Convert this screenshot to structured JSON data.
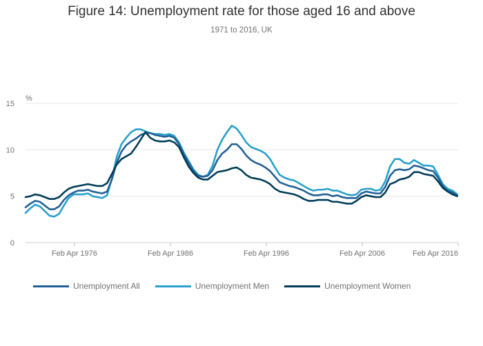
{
  "chart_data": {
    "type": "line",
    "title": "Figure 14: Unemployment rate for those aged 16 and above",
    "subtitle": "1971 to 2016, UK",
    "ylabel": "%",
    "xlabel": "",
    "ylim": [
      0,
      15
    ],
    "xlim": [
      1971.0,
      2016.1
    ],
    "yticks": [
      0,
      5,
      10,
      15
    ],
    "xticks": [
      {
        "value": 1976.1,
        "label": "Feb Apr 1976"
      },
      {
        "value": 1986.1,
        "label": "Feb Apr 1986"
      },
      {
        "value": 1996.1,
        "label": "Feb Apr 1996"
      },
      {
        "value": 2006.1,
        "label": "Feb Apr 2006"
      },
      {
        "value": 2016.1,
        "label": "Feb Apr 2016"
      }
    ],
    "grid": true,
    "legend_position": "bottom",
    "series": [
      {
        "name": "Unemployment All",
        "color": "#206095",
        "x": [
          1971.0,
          1971.5,
          1972.0,
          1972.5,
          1973.0,
          1973.5,
          1974.0,
          1974.5,
          1975.0,
          1975.5,
          1976.0,
          1976.5,
          1977.0,
          1977.5,
          1978.0,
          1978.5,
          1979.0,
          1979.5,
          1980.0,
          1980.5,
          1981.0,
          1981.5,
          1982.0,
          1982.5,
          1983.0,
          1983.5,
          1984.0,
          1984.5,
          1985.0,
          1985.5,
          1986.0,
          1986.5,
          1987.0,
          1987.5,
          1988.0,
          1988.5,
          1989.0,
          1989.5,
          1990.0,
          1990.5,
          1991.0,
          1991.5,
          1992.0,
          1992.5,
          1993.0,
          1993.5,
          1994.0,
          1994.5,
          1995.0,
          1995.5,
          1996.0,
          1996.5,
          1997.0,
          1997.5,
          1998.0,
          1998.5,
          1999.0,
          1999.5,
          2000.0,
          2000.5,
          2001.0,
          2001.5,
          2002.0,
          2002.5,
          2003.0,
          2003.5,
          2004.0,
          2004.5,
          2005.0,
          2005.5,
          2006.0,
          2006.5,
          2007.0,
          2007.5,
          2008.0,
          2008.5,
          2009.0,
          2009.5,
          2010.0,
          2010.5,
          2011.0,
          2011.5,
          2012.0,
          2012.5,
          2013.0,
          2013.5,
          2014.0,
          2014.5,
          2015.0,
          2015.5,
          2016.0
        ],
        "values": [
          3.8,
          4.2,
          4.5,
          4.4,
          4.0,
          3.6,
          3.6,
          3.9,
          4.6,
          5.1,
          5.4,
          5.6,
          5.6,
          5.7,
          5.5,
          5.4,
          5.3,
          5.5,
          6.8,
          8.6,
          9.8,
          10.5,
          10.9,
          11.2,
          11.6,
          11.8,
          11.8,
          11.6,
          11.5,
          11.4,
          11.5,
          11.3,
          10.6,
          9.5,
          8.6,
          7.7,
          7.2,
          7.1,
          7.2,
          7.8,
          8.9,
          9.6,
          10.0,
          10.6,
          10.6,
          10.1,
          9.4,
          8.9,
          8.6,
          8.4,
          8.1,
          7.7,
          7.1,
          6.5,
          6.3,
          6.1,
          6.0,
          5.8,
          5.6,
          5.3,
          5.1,
          5.1,
          5.2,
          5.2,
          5.0,
          5.1,
          4.9,
          4.8,
          4.8,
          4.8,
          5.3,
          5.5,
          5.4,
          5.3,
          5.3,
          6.0,
          7.2,
          7.8,
          7.9,
          7.8,
          7.9,
          8.3,
          8.2,
          8.0,
          7.8,
          7.7,
          7.0,
          6.1,
          5.6,
          5.4,
          5.1
        ]
      },
      {
        "name": "Unemployment Men",
        "color": "#27a0cc",
        "x": [
          1971.0,
          1971.5,
          1972.0,
          1972.5,
          1973.0,
          1973.5,
          1974.0,
          1974.5,
          1975.0,
          1975.5,
          1976.0,
          1976.5,
          1977.0,
          1977.5,
          1978.0,
          1978.5,
          1979.0,
          1979.5,
          1980.0,
          1980.5,
          1981.0,
          1981.5,
          1982.0,
          1982.5,
          1983.0,
          1983.5,
          1984.0,
          1984.5,
          1985.0,
          1985.5,
          1986.0,
          1986.5,
          1987.0,
          1987.5,
          1988.0,
          1988.5,
          1989.0,
          1989.5,
          1990.0,
          1990.5,
          1991.0,
          1991.5,
          1992.0,
          1992.5,
          1993.0,
          1993.5,
          1994.0,
          1994.5,
          1995.0,
          1995.5,
          1996.0,
          1996.5,
          1997.0,
          1997.5,
          1998.0,
          1998.5,
          1999.0,
          1999.5,
          2000.0,
          2000.5,
          2001.0,
          2001.5,
          2002.0,
          2002.5,
          2003.0,
          2003.5,
          2004.0,
          2004.5,
          2005.0,
          2005.5,
          2006.0,
          2006.5,
          2007.0,
          2007.5,
          2008.0,
          2008.5,
          2009.0,
          2009.5,
          2010.0,
          2010.5,
          2011.0,
          2011.5,
          2012.0,
          2012.5,
          2013.0,
          2013.5,
          2014.0,
          2014.5,
          2015.0,
          2015.5,
          2016.0
        ],
        "values": [
          3.2,
          3.7,
          4.1,
          3.9,
          3.4,
          2.9,
          2.8,
          3.1,
          4.0,
          4.8,
          5.2,
          5.2,
          5.2,
          5.3,
          5.0,
          4.9,
          4.8,
          5.1,
          6.9,
          9.2,
          10.6,
          11.3,
          11.9,
          12.2,
          12.2,
          12.0,
          11.8,
          11.7,
          11.7,
          11.6,
          11.7,
          11.5,
          10.8,
          9.7,
          8.8,
          7.9,
          7.3,
          7.1,
          7.3,
          8.3,
          10.0,
          11.1,
          11.9,
          12.6,
          12.3,
          11.6,
          10.8,
          10.3,
          10.1,
          9.9,
          9.6,
          9.0,
          8.1,
          7.3,
          7.0,
          6.8,
          6.7,
          6.4,
          6.1,
          5.8,
          5.6,
          5.7,
          5.7,
          5.8,
          5.6,
          5.6,
          5.4,
          5.2,
          5.1,
          5.2,
          5.7,
          5.8,
          5.8,
          5.6,
          5.7,
          6.6,
          8.2,
          9.0,
          9.0,
          8.6,
          8.5,
          8.9,
          8.6,
          8.3,
          8.3,
          8.2,
          7.3,
          6.3,
          5.8,
          5.6,
          5.2
        ]
      },
      {
        "name": "Unemployment Women",
        "color": "#003c57",
        "x": [
          1971.0,
          1971.5,
          1972.0,
          1972.5,
          1973.0,
          1973.5,
          1974.0,
          1974.5,
          1975.0,
          1975.5,
          1976.0,
          1976.5,
          1977.0,
          1977.5,
          1978.0,
          1978.5,
          1979.0,
          1979.5,
          1980.0,
          1980.5,
          1981.0,
          1981.5,
          1982.0,
          1982.5,
          1983.0,
          1983.5,
          1984.0,
          1984.5,
          1985.0,
          1985.5,
          1986.0,
          1986.5,
          1987.0,
          1987.5,
          1988.0,
          1988.5,
          1989.0,
          1989.5,
          1990.0,
          1990.5,
          1991.0,
          1991.5,
          1992.0,
          1992.5,
          1993.0,
          1993.5,
          1994.0,
          1994.5,
          1995.0,
          1995.5,
          1996.0,
          1996.5,
          1997.0,
          1997.5,
          1998.0,
          1998.5,
          1999.0,
          1999.5,
          2000.0,
          2000.5,
          2001.0,
          2001.5,
          2002.0,
          2002.5,
          2003.0,
          2003.5,
          2004.0,
          2004.5,
          2005.0,
          2005.5,
          2006.0,
          2006.5,
          2007.0,
          2007.5,
          2008.0,
          2008.5,
          2009.0,
          2009.5,
          2010.0,
          2010.5,
          2011.0,
          2011.5,
          2012.0,
          2012.5,
          2013.0,
          2013.5,
          2014.0,
          2014.5,
          2015.0,
          2015.5,
          2016.0
        ],
        "values": [
          4.9,
          5.0,
          5.2,
          5.1,
          4.9,
          4.7,
          4.7,
          4.9,
          5.4,
          5.8,
          6.0,
          6.1,
          6.2,
          6.3,
          6.2,
          6.1,
          6.1,
          6.4,
          7.4,
          8.4,
          9.0,
          9.3,
          9.6,
          10.3,
          11.1,
          11.9,
          11.3,
          11.0,
          10.9,
          10.9,
          11.0,
          10.8,
          10.3,
          9.2,
          8.2,
          7.5,
          7.0,
          6.8,
          6.8,
          7.2,
          7.6,
          7.7,
          7.8,
          8.0,
          8.1,
          7.8,
          7.3,
          7.0,
          6.9,
          6.8,
          6.6,
          6.3,
          5.8,
          5.5,
          5.4,
          5.3,
          5.2,
          5.0,
          4.7,
          4.5,
          4.5,
          4.6,
          4.6,
          4.6,
          4.4,
          4.4,
          4.3,
          4.2,
          4.2,
          4.5,
          4.9,
          5.1,
          5.0,
          4.9,
          4.9,
          5.4,
          6.3,
          6.5,
          6.8,
          6.9,
          7.1,
          7.6,
          7.6,
          7.4,
          7.3,
          7.2,
          6.6,
          5.9,
          5.5,
          5.2,
          5.0
        ]
      }
    ]
  }
}
